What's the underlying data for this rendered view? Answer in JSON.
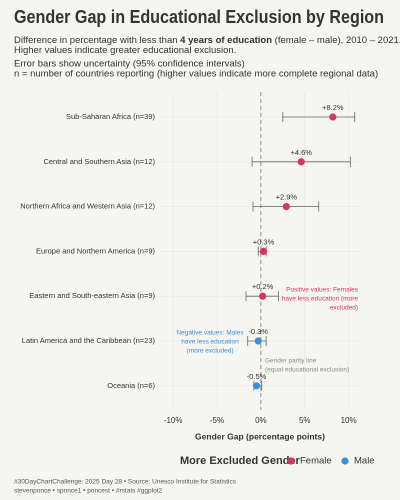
{
  "chart_data": {
    "type": "dotplot",
    "title": "Gender Gap in Educational Exclusion by Region",
    "subtitle": [
      [
        "Difference in percentage with less than ",
        "4 years of education",
        " (female – male), 2010 – 2021."
      ],
      [
        "Higher values indicate greater educational exclusion."
      ]
    ],
    "notes": [
      "Error bars show uncertainty (95% confidence intervals)",
      "n = number of countries reporting (higher values indicate more complete regional data)"
    ],
    "categories": [
      "Sub-Saharan Africa (n=39)",
      "Central and Southern Asia (n=12)",
      "Northern Africa and Western Asia (n=12)",
      "Europe and Northern America (n=9)",
      "Eastern and South-eastern Asia (n=9)",
      "Latin America and the Caribbean (n=23)",
      "Oceania (n=6)"
    ],
    "values": [
      8.2,
      4.6,
      2.9,
      0.3,
      0.2,
      -0.3,
      -0.5
    ],
    "value_labels": [
      "+8.2%",
      "+4.6%",
      "+2.9%",
      "+0.3%",
      "+0.2%",
      "-0.3%",
      "-0.5%"
    ],
    "ci_low": [
      2.5,
      -1.0,
      -0.9,
      -0.3,
      -1.7,
      -1.5,
      -0.8
    ],
    "ci_high": [
      10.7,
      10.2,
      6.6,
      0.6,
      2.0,
      0.6,
      0.1
    ],
    "groups": [
      "Female",
      "Female",
      "Female",
      "Female",
      "Female",
      "Male",
      "Male"
    ],
    "legend": {
      "title": "More Excluded Gender",
      "entries": [
        {
          "name": "Female",
          "color": "#d6336c"
        },
        {
          "name": "Male",
          "color": "#3a8fd9"
        }
      ]
    },
    "xlabel": "Gender Gap (percentage points)",
    "xlim": [
      -11.5,
      11.3
    ],
    "xticks": [
      {
        "value": -10,
        "label": "-10%"
      },
      {
        "value": -5,
        "label": "-5%"
      },
      {
        "value": 0,
        "label": "0%"
      },
      {
        "value": 5,
        "label": "5%"
      },
      {
        "value": 10,
        "label": "10%"
      }
    ],
    "grid": true,
    "annotations": [
      {
        "lines": [
          "Positive values: Females",
          "have less education (more",
          "excluded)"
        ],
        "color": "#d6336c"
      },
      {
        "lines": [
          "Negative values: Males",
          "have less education",
          "(more excluded)"
        ],
        "color": "#3a8fd9"
      },
      {
        "lines": [
          "Gender parity line",
          "(equal educational exclusion)"
        ],
        "color": "#888888"
      }
    ],
    "caption": [
      "#30DayChartChallenge: 2025 Day 28 • Source: Unesco Institute for Statistics",
      "stevenponce • sponce1 • poncest • #rstats #ggplot2"
    ]
  }
}
